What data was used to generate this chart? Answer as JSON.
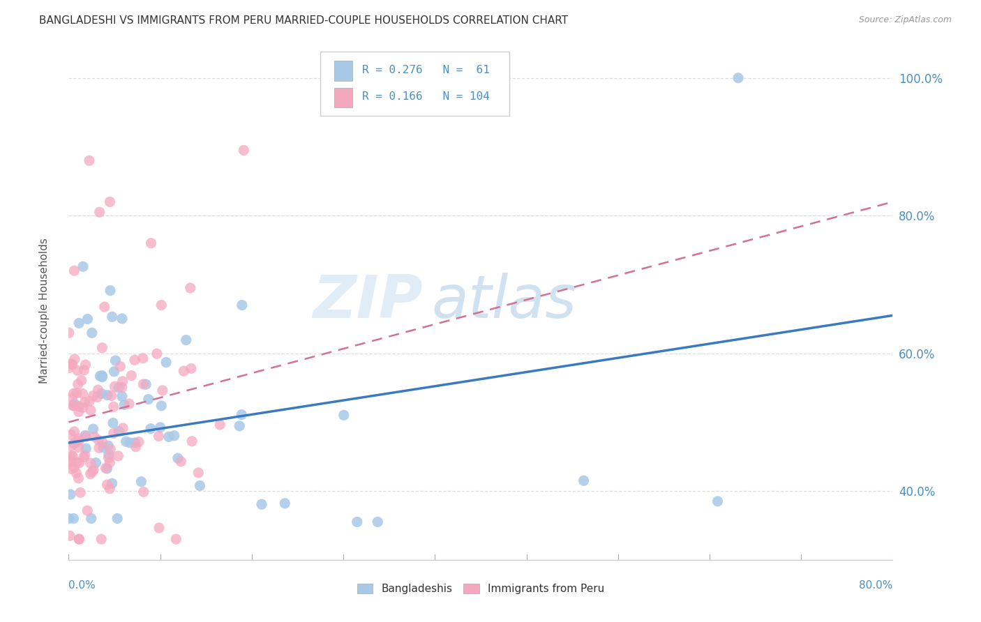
{
  "title": "BANGLADESHI VS IMMIGRANTS FROM PERU MARRIED-COUPLE HOUSEHOLDS CORRELATION CHART",
  "source": "Source: ZipAtlas.com",
  "ylabel": "Married-couple Households",
  "bottom_legend": [
    "Bangladeshis",
    "Immigrants from Peru"
  ],
  "blue_scatter_color": "#a8c8e8",
  "pink_scatter_color": "#f4a8c0",
  "blue_line_color": "#3a7abf",
  "pink_line_color": "#d47090",
  "tick_label_color": "#4a8fc4",
  "watermark_zip": "ZIP",
  "watermark_atlas": "atlas",
  "background_color": "#ffffff",
  "grid_color": "#dddddd",
  "xlim": [
    0.0,
    0.8
  ],
  "ylim": [
    0.3,
    1.05
  ],
  "ytick_positions": [
    0.4,
    0.6,
    0.8,
    1.0
  ],
  "ytick_labels": [
    "40.0%",
    "60.0%",
    "80.0%",
    "100.0%"
  ],
  "blue_line_x0": 0.0,
  "blue_line_y0": 0.47,
  "blue_line_x1": 0.8,
  "blue_line_y1": 0.655,
  "pink_line_x0": 0.0,
  "pink_line_y0": 0.5,
  "pink_line_x1": 0.8,
  "pink_line_y1": 0.82,
  "legend_blue_color": "#a8c8e8",
  "legend_pink_color": "#f4a8c0",
  "R_blue": 0.276,
  "N_blue": 61,
  "R_pink": 0.166,
  "N_pink": 104
}
